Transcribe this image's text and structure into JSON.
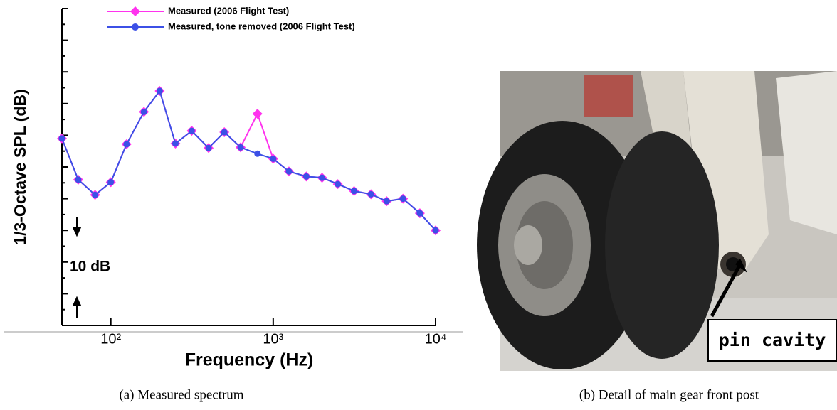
{
  "chart_data": {
    "type": "line",
    "y_label": "1/3-Octave SPL (dB)",
    "x_label": "Frequency (Hz)",
    "x": [
      50,
      63,
      80,
      100,
      125,
      160,
      200,
      250,
      315,
      400,
      500,
      630,
      800,
      1000,
      1250,
      1600,
      2000,
      2500,
      3150,
      4000,
      5000,
      6300,
      8000,
      10000
    ],
    "series": [
      {
        "name": "Measured (2006 Flight Test)",
        "color": "#ff33ee",
        "marker": "diamond",
        "values": [
          29.5,
          23.0,
          20.6,
          22.6,
          28.6,
          33.7,
          37.0,
          28.7,
          30.7,
          28.0,
          30.5,
          28.1,
          33.4,
          26.3,
          24.3,
          23.5,
          23.3,
          22.3,
          21.2,
          20.7,
          19.6,
          20.0,
          17.7,
          15.0
        ]
      },
      {
        "name": "Measured, tone removed (2006 Flight Test)",
        "color": "#3c50e6",
        "marker": "circle",
        "values": [
          29.5,
          23.0,
          20.6,
          22.6,
          28.6,
          33.7,
          37.0,
          28.7,
          30.7,
          28.0,
          30.5,
          28.1,
          27.1,
          26.3,
          24.3,
          23.5,
          23.3,
          22.3,
          21.2,
          20.7,
          19.6,
          20.0,
          17.7,
          15.0
        ]
      }
    ],
    "xlim": [
      50,
      10000
    ],
    "x_log": true,
    "xticks": [
      {
        "value": 100,
        "label": "10²"
      },
      {
        "value": 1000,
        "label": "10³"
      },
      {
        "value": 10000,
        "label": "10⁴"
      }
    ],
    "ylim": [
      0,
      50
    ],
    "yticks": [
      0,
      2.5,
      5,
      7.5,
      10,
      12.5,
      15,
      17.5,
      20,
      22.5,
      25,
      27.5,
      30,
      32.5,
      35,
      37.5,
      40,
      42.5,
      45,
      47.5,
      50
    ],
    "annotation": "10 dB",
    "legend": "top"
  },
  "photo": {
    "label": "pin cavity"
  },
  "captions": [
    "(a)   Measured spectrum",
    "(b) Detail of main gear front post"
  ]
}
